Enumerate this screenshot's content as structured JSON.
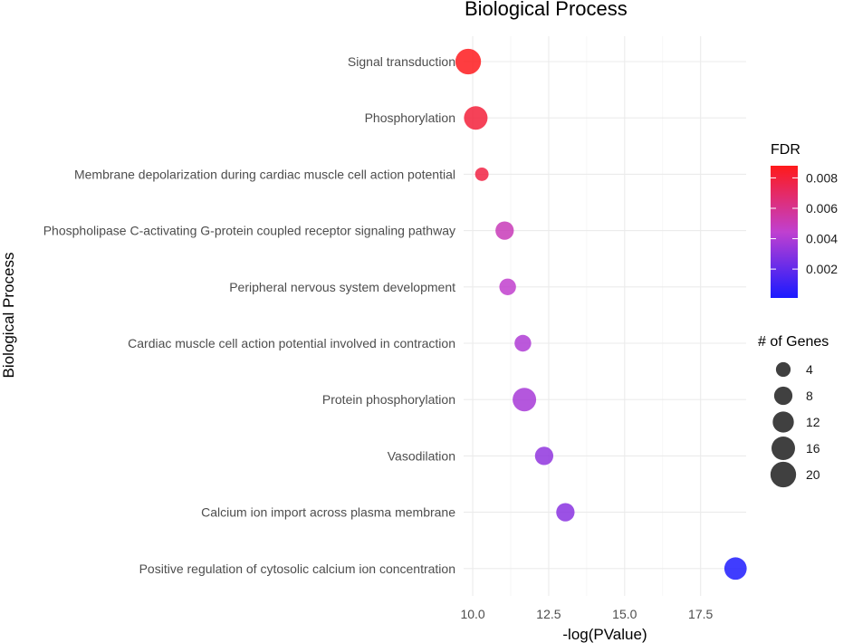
{
  "chart_data": {
    "type": "scatter",
    "title": "Biological Process",
    "xlabel": "-log(PValue)",
    "ylabel": "Biological Process",
    "xlim": [
      9.7,
      19.0
    ],
    "xticks": [
      10.0,
      12.5,
      15.0,
      17.5
    ],
    "xtick_labels": [
      "10.0",
      "12.5",
      "15.0",
      "17.5"
    ],
    "grid": true,
    "points": [
      {
        "term": "Signal transduction",
        "x": 9.85,
        "genes": 20,
        "fdr": 0.0087
      },
      {
        "term": "Phosphorylation",
        "x": 10.1,
        "genes": 16,
        "fdr": 0.008
      },
      {
        "term": "Membrane depolarization during cardiac muscle cell action potential",
        "x": 10.3,
        "genes": 3,
        "fdr": 0.0078
      },
      {
        "term": "Phospholipase C-activating G-protein coupled receptor signaling pathway",
        "x": 11.05,
        "genes": 8,
        "fdr": 0.005
      },
      {
        "term": "Peripheral nervous system development",
        "x": 11.15,
        "genes": 6,
        "fdr": 0.0045
      },
      {
        "term": "Cardiac muscle cell action potential involved in contraction",
        "x": 11.65,
        "genes": 6,
        "fdr": 0.004
      },
      {
        "term": "Protein phosphorylation",
        "x": 11.7,
        "genes": 16,
        "fdr": 0.0038
      },
      {
        "term": "Vasodilation",
        "x": 12.35,
        "genes": 8,
        "fdr": 0.0032
      },
      {
        "term": "Calcium ion import across plasma membrane",
        "x": 13.05,
        "genes": 8,
        "fdr": 0.003
      },
      {
        "term": "Positive regulation of cytosolic calcium ion concentration",
        "x": 18.65,
        "genes": 14,
        "fdr": 0.0002
      }
    ],
    "color_legend": {
      "title": "FDR",
      "min": 0.0001,
      "max": 0.0088,
      "low_color": "#1a1aff",
      "mid_color": "#c040d0",
      "high_color": "#ff1a1a",
      "breaks": [
        0.008,
        0.006,
        0.004,
        0.002
      ],
      "break_labels": [
        "0.008",
        "0.006",
        "0.004",
        "0.002"
      ]
    },
    "size_legend": {
      "title": "# of Genes",
      "values": [
        4,
        8,
        12,
        16,
        20
      ],
      "labels": [
        "4",
        "8",
        "12",
        "16",
        "20"
      ],
      "color": "#000000"
    }
  }
}
